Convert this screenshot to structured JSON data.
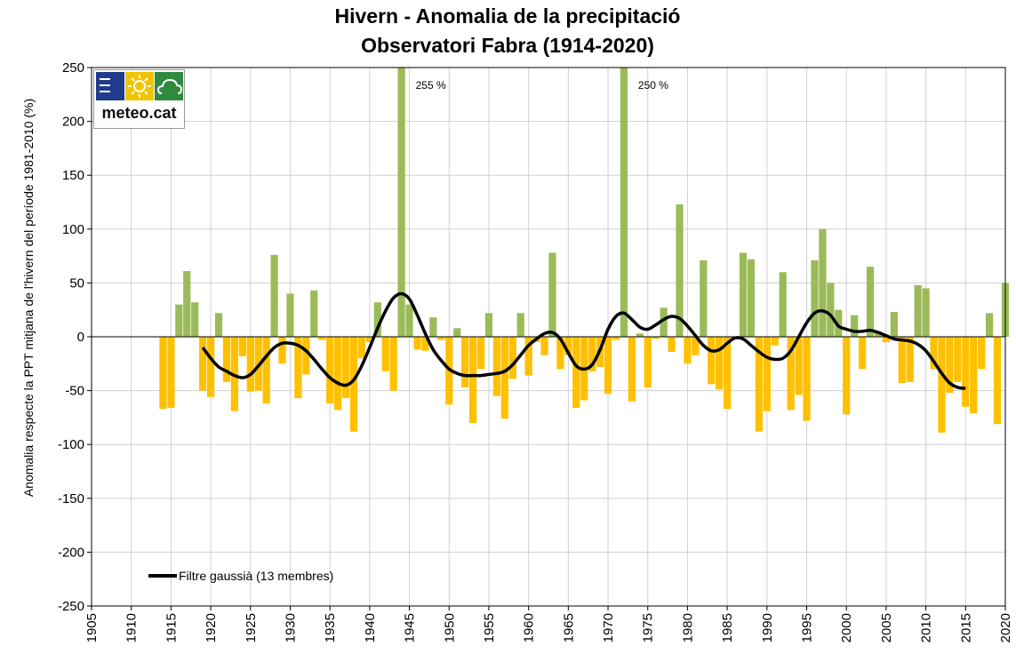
{
  "chart_data": {
    "type": "bar",
    "title": [
      "Hivern - Anomalia de la precipitació",
      "Observatori Fabra (1914-2020)"
    ],
    "ylabel": "Anomalia respecte la PPT mitjana de l'hivern  del període 1981-2010 (%)",
    "xlabel": "",
    "ylim": [
      -250,
      250
    ],
    "xlim": [
      1905,
      2020
    ],
    "yticks": [
      250,
      200,
      150,
      100,
      50,
      0,
      -50,
      -100,
      -150,
      -200,
      -250
    ],
    "xticks": [
      1905,
      1910,
      1915,
      1920,
      1925,
      1930,
      1935,
      1940,
      1945,
      1950,
      1955,
      1960,
      1965,
      1970,
      1975,
      1980,
      1985,
      1990,
      1995,
      2000,
      2005,
      2010,
      2015,
      2020
    ],
    "grid": true,
    "positive_color": "#9bbb59",
    "negative_color": "#ffc000",
    "years": [
      1914,
      1915,
      1916,
      1917,
      1918,
      1919,
      1920,
      1921,
      1922,
      1923,
      1924,
      1925,
      1926,
      1927,
      1928,
      1929,
      1930,
      1931,
      1932,
      1933,
      1934,
      1935,
      1936,
      1937,
      1938,
      1939,
      1940,
      1941,
      1942,
      1943,
      1944,
      1945,
      1946,
      1947,
      1948,
      1949,
      1950,
      1951,
      1952,
      1953,
      1954,
      1955,
      1956,
      1957,
      1958,
      1959,
      1960,
      1961,
      1962,
      1963,
      1964,
      1965,
      1966,
      1967,
      1968,
      1969,
      1970,
      1971,
      1972,
      1973,
      1974,
      1975,
      1976,
      1977,
      1978,
      1979,
      1980,
      1981,
      1982,
      1983,
      1984,
      1985,
      1986,
      1987,
      1988,
      1989,
      1990,
      1991,
      1992,
      1993,
      1994,
      1995,
      1996,
      1997,
      1998,
      1999,
      2000,
      2001,
      2002,
      2003,
      2004,
      2005,
      2006,
      2007,
      2008,
      2009,
      2010,
      2011,
      2012,
      2013,
      2014,
      2015,
      2016,
      2017,
      2018,
      2019,
      2020
    ],
    "values": [
      -67,
      -66,
      30,
      61,
      32,
      -50,
      -56,
      22,
      -42,
      -69,
      -18,
      -51,
      -50,
      -62,
      76,
      -25,
      40,
      -57,
      -35,
      43,
      -3,
      -62,
      -68,
      -57,
      -88,
      -20,
      -5,
      32,
      -32,
      -50,
      255,
      30,
      -12,
      -13,
      18,
      -3,
      -63,
      8,
      -47,
      -80,
      -30,
      22,
      -55,
      -76,
      -39,
      22,
      -36,
      -5,
      -17,
      78,
      -30,
      -17,
      -66,
      -59,
      -32,
      -28,
      -53,
      -3,
      250,
      -60,
      3,
      -47,
      -2,
      27,
      -14,
      123,
      -25,
      -17,
      71,
      -44,
      -49,
      -67,
      -2,
      78,
      72,
      -88,
      -69,
      -8,
      60,
      -68,
      -54,
      -78,
      71,
      100,
      50,
      25,
      -72,
      20,
      -30,
      65,
      5,
      -5,
      23,
      -43,
      -42,
      48,
      45,
      -30,
      -89,
      -52,
      -42,
      -65,
      -71,
      -30,
      22,
      -81,
      50
    ],
    "overflow_labels": [
      {
        "year": 1944,
        "text": "255 %"
      },
      {
        "year": 1972,
        "text": "250 %"
      }
    ],
    "series": [
      {
        "name": "Filtre gaussià (13 membres)",
        "type": "line",
        "color": "#000000",
        "x": [
          1919,
          1920,
          1921,
          1922,
          1923,
          1924,
          1925,
          1926,
          1927,
          1928,
          1929,
          1930,
          1931,
          1932,
          1933,
          1934,
          1935,
          1936,
          1937,
          1938,
          1939,
          1940,
          1941,
          1942,
          1943,
          1944,
          1945,
          1946,
          1947,
          1948,
          1949,
          1950,
          1951,
          1952,
          1953,
          1954,
          1955,
          1956,
          1957,
          1958,
          1959,
          1960,
          1961,
          1962,
          1963,
          1964,
          1965,
          1966,
          1967,
          1968,
          1969,
          1970,
          1971,
          1972,
          1973,
          1974,
          1975,
          1976,
          1977,
          1978,
          1979,
          1980,
          1981,
          1982,
          1983,
          1984,
          1985,
          1986,
          1987,
          1988,
          1989,
          1990,
          1991,
          1992,
          1993,
          1994,
          1995,
          1996,
          1997,
          1998,
          1999,
          2000,
          2001,
          2002,
          2003,
          2004,
          2005,
          2006,
          2007,
          2008,
          2009,
          2010,
          2011,
          2012,
          2013,
          2014,
          2015
        ],
        "y": [
          -10,
          -20,
          -28,
          -32,
          -36,
          -38,
          -35,
          -27,
          -18,
          -10,
          -6,
          -6,
          -8,
          -13,
          -21,
          -30,
          -38,
          -43,
          -45,
          -40,
          -27,
          -10,
          8,
          24,
          36,
          40,
          35,
          20,
          3,
          -12,
          -22,
          -30,
          -34,
          -36,
          -36,
          -36,
          -35,
          -34,
          -32,
          -26,
          -17,
          -8,
          -2,
          3,
          4,
          -2,
          -15,
          -27,
          -30,
          -26,
          -12,
          7,
          19,
          22,
          16,
          9,
          7,
          11,
          16,
          19,
          17,
          10,
          1,
          -8,
          -13,
          -12,
          -6,
          -1,
          -2,
          -8,
          -14,
          -19,
          -21,
          -20,
          -13,
          0,
          13,
          22,
          24,
          20,
          10,
          7,
          5,
          5,
          6,
          4,
          1,
          -2,
          -3,
          -4,
          -7,
          -13,
          -23,
          -34,
          -43,
          -47,
          -48
        ]
      }
    ]
  },
  "logo": {
    "text": "meteo.cat"
  }
}
